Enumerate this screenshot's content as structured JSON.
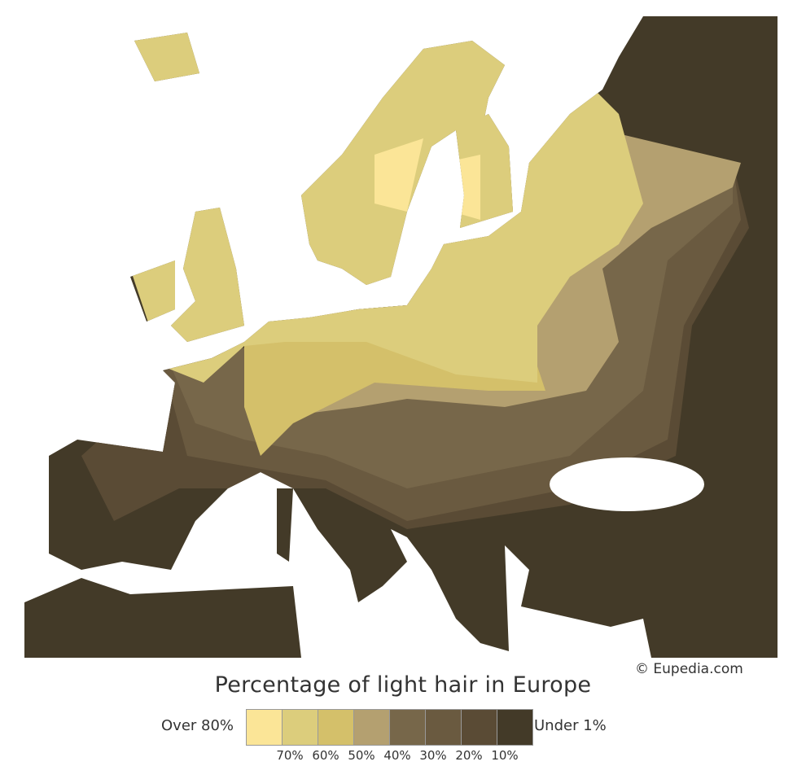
{
  "title": "Percentage of light hair in Europe",
  "credit": "© Eupedia.com",
  "legend": {
    "low_end_label": "Over 80%",
    "high_end_label": "Under 1%",
    "colors": [
      "#fbe597",
      "#dccd7c",
      "#d4c06a",
      "#b4a070",
      "#77674a",
      "#6a5a40",
      "#5a4b35",
      "#433a28"
    ],
    "ticks": [
      "70%",
      "60%",
      "50%",
      "40%",
      "30%",
      "20%",
      "10%"
    ]
  },
  "colors": {
    "sea": "#ffffff",
    "borders": "#c8c8c8"
  }
}
